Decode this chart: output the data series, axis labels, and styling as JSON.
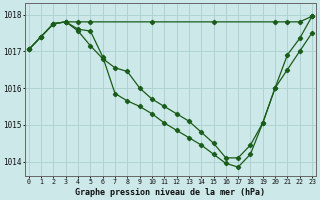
{
  "title": "Graphe pression niveau de la mer (hPa)",
  "bg_color": "#cce8e8",
  "grid_color": "#aad0d0",
  "line_color": "#1a5c1a",
  "line1": {
    "x": [
      0,
      1,
      2,
      3,
      4,
      5,
      10,
      15,
      20,
      21,
      22,
      23
    ],
    "y": [
      1017.05,
      1017.4,
      1017.75,
      1017.8,
      1017.8,
      1017.8,
      1017.8,
      1017.8,
      1017.8,
      1017.8,
      1017.8,
      1017.95
    ]
  },
  "line2": {
    "x": [
      0,
      1,
      2,
      3,
      4,
      5,
      6,
      7,
      8,
      9,
      10,
      11,
      12,
      13,
      14,
      15,
      16,
      17,
      18,
      19,
      20,
      21,
      22,
      23
    ],
    "y": [
      1017.05,
      1017.4,
      1017.75,
      1017.8,
      1017.6,
      1017.55,
      1016.85,
      1015.85,
      1015.65,
      1015.5,
      1015.3,
      1015.05,
      1014.85,
      1014.65,
      1014.45,
      1014.2,
      1013.95,
      1013.85,
      1014.2,
      1015.05,
      1016.0,
      1016.9,
      1017.35,
      1017.95
    ]
  },
  "line3": {
    "x": [
      0,
      1,
      2,
      3,
      4,
      5,
      6,
      7,
      8,
      9,
      10,
      11,
      12,
      13,
      14,
      15,
      16,
      17,
      18,
      19,
      20,
      21,
      22,
      23
    ],
    "y": [
      1017.05,
      1017.4,
      1017.75,
      1017.8,
      1017.55,
      1017.15,
      1016.8,
      1016.55,
      1016.45,
      1016.0,
      1015.7,
      1015.5,
      1015.3,
      1015.1,
      1014.8,
      1014.5,
      1014.1,
      1014.1,
      1014.45,
      1015.05,
      1016.0,
      1016.5,
      1017.0,
      1017.5
    ]
  },
  "ylim": [
    1013.6,
    1018.3
  ],
  "yticks": [
    1014,
    1015,
    1016,
    1017,
    1018
  ],
  "xticks": [
    0,
    1,
    2,
    3,
    4,
    5,
    6,
    7,
    8,
    9,
    10,
    11,
    12,
    13,
    14,
    15,
    16,
    17,
    18,
    19,
    20,
    21,
    22,
    23
  ],
  "xlim": [
    -0.3,
    23.3
  ]
}
